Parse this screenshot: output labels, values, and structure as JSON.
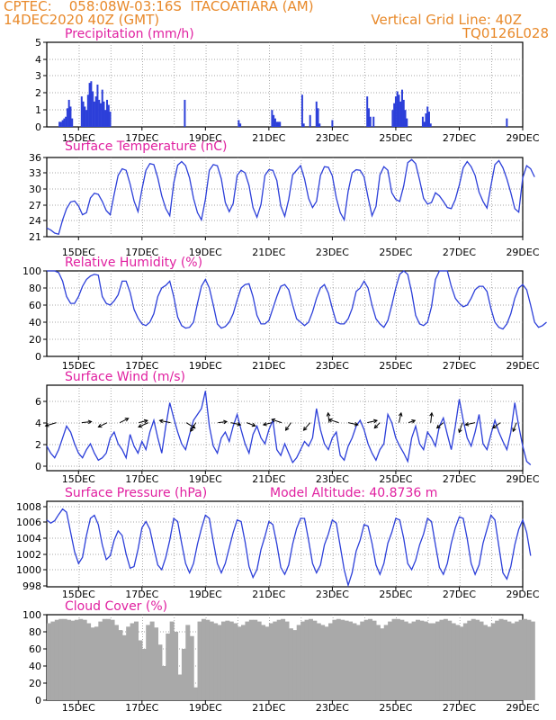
{
  "header": {
    "line1_left": "CPTEC:    058:08W-03:16S  ITACOATIARA (AM)",
    "line2_left": "14DEC2020 40Z (GMT)",
    "line1_right": "Vertical Grid Line: 40Z",
    "line2_right": "TQ0126L028"
  },
  "colors": {
    "header": "#e8892a",
    "title": "#e020a0",
    "series": "#2c3fd9",
    "cloud_fill": "#a9a9a9",
    "arrow": "#000000"
  },
  "x_tick_labels": [
    "15DEC",
    "17DEC",
    "19DEC",
    "21DEC",
    "23DEC",
    "25DEC",
    "27DEC",
    "29DEC"
  ],
  "model_altitude": "Model Altitude: 40.8736 m",
  "chart_data": [
    {
      "type": "bar",
      "title": "Precipitation (mm/h)",
      "ylim": [
        0,
        5
      ],
      "yticks": [
        "0",
        "1",
        "2",
        "3",
        "4",
        "5"
      ],
      "x_range_days": [
        14.0,
        29.0
      ],
      "x": [
        14.4,
        14.45,
        14.5,
        14.55,
        14.6,
        14.65,
        14.7,
        14.75,
        14.8,
        15.1,
        15.15,
        15.2,
        15.25,
        15.3,
        15.35,
        15.4,
        15.45,
        15.5,
        15.55,
        15.6,
        15.65,
        15.7,
        15.75,
        15.8,
        15.85,
        15.9,
        15.95,
        16.0,
        18.35,
        20.05,
        20.1,
        21.1,
        21.15,
        21.2,
        21.25,
        21.3,
        21.35,
        22.05,
        22.1,
        22.3,
        22.5,
        22.55,
        22.6,
        23.0,
        24.1,
        24.15,
        24.2,
        24.3,
        24.9,
        24.95,
        25.0,
        25.05,
        25.1,
        25.15,
        25.2,
        25.25,
        25.3,
        25.35,
        25.85,
        25.9,
        25.95,
        26.0,
        26.05,
        26.1,
        28.5
      ],
      "values": [
        0.3,
        0.3,
        0.4,
        0.5,
        0.6,
        1.1,
        1.6,
        1.2,
        0.5,
        1.8,
        1.5,
        1.2,
        1.0,
        1.9,
        2.6,
        2.7,
        2.1,
        1.5,
        1.8,
        2.5,
        1.6,
        1.4,
        2.2,
        1.5,
        1.0,
        1.6,
        1.3,
        0.9,
        1.6,
        0.4,
        0.2,
        1.0,
        0.7,
        0.5,
        0.3,
        0.3,
        0.3,
        1.9,
        0.2,
        0.7,
        1.5,
        1.1,
        0.2,
        0.4,
        1.8,
        1.1,
        0.6,
        0.6,
        1.0,
        1.4,
        1.8,
        2.1,
        1.9,
        1.5,
        2.2,
        1.6,
        1.0,
        0.5,
        0.6,
        0.3,
        0.8,
        1.2,
        0.9,
        0.2,
        0.5
      ]
    },
    {
      "type": "line",
      "title": "Surface Temperature (nC)",
      "ylim": [
        20.5,
        36
      ],
      "yticks": [
        "21",
        "24",
        "27",
        "30",
        "33",
        "36"
      ],
      "x_start_day": 14.0,
      "x_step_days": 0.125,
      "values": [
        22.2,
        21.8,
        21.2,
        21.0,
        23.8,
        26.0,
        27.3,
        27.5,
        26.5,
        24.8,
        25.2,
        28.1,
        29.0,
        28.8,
        27.4,
        25.6,
        24.8,
        28.8,
        32.5,
        33.8,
        33.5,
        30.8,
        27.5,
        25.4,
        29.8,
        33.5,
        34.8,
        34.6,
        32.0,
        28.5,
        26.0,
        24.6,
        31.0,
        34.5,
        35.2,
        34.4,
        32.0,
        28.0,
        25.2,
        23.8,
        27.8,
        33.5,
        34.6,
        34.4,
        31.8,
        27.2,
        25.4,
        27.0,
        32.5,
        33.5,
        33.0,
        30.5,
        26.2,
        24.3,
        26.8,
        32.5,
        33.6,
        33.5,
        31.5,
        26.5,
        24.5,
        27.8,
        32.6,
        33.5,
        34.4,
        31.8,
        28.0,
        26.2,
        27.4,
        32.5,
        34.2,
        34.1,
        32.4,
        28.1,
        25.2,
        23.8,
        29.4,
        33.0,
        33.6,
        33.5,
        32.2,
        28.2,
        24.6,
        26.4,
        32.6,
        34.2,
        33.5,
        29.1,
        27.8,
        27.4,
        30.5,
        35.0,
        35.6,
        34.8,
        31.6,
        28.0,
        26.9,
        27.2,
        29.1,
        28.5,
        27.4,
        26.2,
        26.0,
        27.8,
        30.6,
        34.0,
        35.2,
        34.2,
        32.5,
        29.2,
        27.4,
        26.1,
        30.5,
        34.6,
        35.4,
        34.0,
        31.8,
        29.1,
        26.0,
        25.3,
        32.0,
        34.4,
        33.8,
        32.2
      ]
    },
    {
      "type": "line",
      "title": "Relative Humidity (%)",
      "ylim": [
        0,
        100
      ],
      "yticks": [
        "0",
        "20",
        "40",
        "60",
        "80",
        "100"
      ],
      "x_start_day": 14.0,
      "x_step_days": 0.125,
      "values": [
        100,
        100,
        100,
        98,
        88,
        70,
        62,
        62,
        70,
        82,
        90,
        94,
        96,
        95,
        70,
        62,
        60,
        65,
        72,
        88,
        88,
        75,
        55,
        45,
        38,
        36,
        40,
        50,
        70,
        80,
        83,
        88,
        70,
        46,
        36,
        33,
        34,
        40,
        62,
        82,
        90,
        80,
        60,
        38,
        33,
        35,
        40,
        50,
        66,
        80,
        84,
        85,
        70,
        48,
        38,
        38,
        42,
        56,
        70,
        82,
        84,
        78,
        60,
        44,
        40,
        36,
        40,
        52,
        68,
        80,
        84,
        74,
        56,
        40,
        38,
        38,
        44,
        56,
        76,
        80,
        88,
        80,
        60,
        44,
        38,
        34,
        42,
        60,
        80,
        96,
        100,
        96,
        75,
        48,
        38,
        36,
        40,
        58,
        90,
        100,
        100,
        100,
        82,
        68,
        62,
        58,
        60,
        68,
        78,
        82,
        82,
        76,
        56,
        40,
        34,
        32,
        38,
        50,
        68,
        80,
        84,
        78,
        60,
        40,
        34,
        36,
        40
      ]
    },
    {
      "type": "line",
      "title": "Surface Wind (m/s)",
      "ylim": [
        -0.3,
        7
      ],
      "yticks": [
        "0",
        "2",
        "4",
        "6"
      ],
      "x_start_day": 14.0,
      "x_step_days": 0.125,
      "values": [
        1.8,
        1.2,
        0.8,
        1.5,
        2.5,
        3.5,
        3.0,
        2.0,
        1.2,
        0.8,
        1.5,
        2.0,
        1.2,
        0.6,
        0.8,
        1.2,
        2.5,
        3.0,
        2.0,
        1.5,
        0.8,
        2.8,
        1.8,
        1.2,
        2.2,
        1.5,
        3.0,
        4.0,
        2.5,
        1.2,
        3.5,
        5.5,
        4.2,
        3.0,
        2.0,
        1.5,
        2.8,
        4.0,
        4.5,
        5.0,
        6.5,
        3.5,
        1.8,
        1.2,
        2.5,
        3.0,
        2.2,
        3.5,
        4.5,
        3.2,
        2.0,
        1.2,
        2.8,
        3.5,
        2.5,
        2.0,
        3.2,
        4.0,
        1.5,
        1.0,
        2.0,
        1.2,
        0.4,
        0.8,
        1.5,
        2.2,
        1.8,
        2.5,
        5.0,
        3.2,
        2.0,
        1.5,
        2.5,
        3.0,
        1.0,
        0.6,
        1.8,
        2.5,
        3.5,
        4.0,
        3.2,
        2.0,
        1.2,
        0.6,
        1.5,
        2.0,
        4.5,
        3.8,
        2.5,
        1.8,
        1.2,
        0.5,
        2.5,
        3.5,
        2.0,
        1.5,
        3.0,
        2.5,
        1.8,
        3.5,
        4.2,
        2.8,
        1.5,
        3.5,
        5.8,
        4.0,
        2.5,
        1.8,
        3.0,
        4.5,
        2.0,
        1.5,
        2.8,
        4.0,
        3.0,
        2.2,
        1.5,
        3.0,
        5.5,
        3.5,
        1.8,
        0.5,
        0.2
      ],
      "arrows": {
        "x_days": [
          14.3,
          15.1,
          15.9,
          16.3,
          16.9,
          17.2,
          17.9,
          18.4,
          18.7,
          19.4,
          19.8,
          20.3,
          21.1,
          21.4,
          21.7,
          22.3,
          22.9,
          23.2,
          23.5,
          24.1,
          24.5,
          25.1,
          25.4,
          26.1,
          26.5,
          27.1,
          27.5,
          28.3,
          28.8
        ],
        "u": [
          -1.0,
          0.9,
          -0.8,
          0.8,
          0.8,
          -0.9,
          -1.0,
          0.8,
          -0.5,
          0.8,
          0.9,
          0.8,
          -0.8,
          -0.9,
          -0.5,
          -0.6,
          -0.1,
          -0.9,
          0.9,
          0.9,
          -0.5,
          0.2,
          0.6,
          0.1,
          -0.6,
          -0.3,
          -0.9,
          -0.7,
          -0.3
        ],
        "v": [
          -0.3,
          0.1,
          -0.4,
          0.4,
          0.2,
          -0.4,
          0.2,
          -0.5,
          -0.8,
          0.1,
          -0.2,
          -0.3,
          -0.2,
          0.3,
          -0.7,
          -0.7,
          0.9,
          0.3,
          -0.2,
          0.2,
          -0.5,
          0.9,
          0.2,
          0.9,
          -0.5,
          -0.9,
          -0.2,
          -0.5,
          -0.8
        ]
      }
    },
    {
      "type": "line",
      "title": "Surface Pressure (hPa)",
      "ylim": [
        998,
        1009
      ],
      "yticks": [
        "998",
        "1000",
        "1002",
        "1004",
        "1006",
        "1008"
      ],
      "x_start_day": 14.0,
      "x_step_days": 0.125,
      "values": [
        1006.6,
        1006.2,
        1006.5,
        1007.3,
        1008.0,
        1007.6,
        1005.0,
        1002.5,
        1001.0,
        1001.8,
        1004.6,
        1006.8,
        1007.2,
        1006.0,
        1003.4,
        1001.5,
        1002.0,
        1004.0,
        1005.2,
        1004.6,
        1002.2,
        1000.4,
        1000.6,
        1002.8,
        1005.6,
        1006.4,
        1005.4,
        1003.0,
        1000.8,
        1000.2,
        1001.8,
        1004.0,
        1006.8,
        1006.4,
        1003.6,
        1001.0,
        999.8,
        1001.0,
        1003.5,
        1005.5,
        1007.2,
        1006.8,
        1003.8,
        1001.0,
        999.8,
        1001.0,
        1003.0,
        1005.0,
        1006.6,
        1006.4,
        1003.8,
        1000.6,
        999.2,
        1000.2,
        1002.8,
        1004.5,
        1006.4,
        1006.0,
        1003.5,
        1000.5,
        999.6,
        1000.8,
        1003.5,
        1005.5,
        1006.8,
        1006.8,
        1004.0,
        1001.0,
        999.8,
        1000.8,
        1003.4,
        1004.8,
        1006.6,
        1006.2,
        1003.2,
        1000.2,
        998.2,
        999.8,
        1002.6,
        1004.0,
        1006.0,
        1005.8,
        1003.6,
        1000.8,
        999.6,
        1001.0,
        1003.6,
        1005.0,
        1006.8,
        1006.6,
        1004.2,
        1001.0,
        1000.2,
        1001.4,
        1003.4,
        1004.8,
        1006.8,
        1006.4,
        1003.4,
        1000.5,
        999.6,
        1001.0,
        1003.6,
        1005.6,
        1007.0,
        1006.8,
        1004.2,
        1001.0,
        999.6,
        1000.8,
        1003.6,
        1005.4,
        1007.2,
        1006.6,
        1003.2,
        999.8,
        999.0,
        1000.6,
        1003.4,
        1005.4,
        1006.6,
        1005.0,
        1002.0
      ]
    },
    {
      "type": "bar",
      "title": "Cloud Cover (%)",
      "ylim": [
        0,
        100
      ],
      "yticks": [
        "0",
        "20",
        "40",
        "60",
        "80",
        "100"
      ],
      "x_start_day": 14.0,
      "x_step_days": 0.125,
      "values": [
        90,
        92,
        94,
        95,
        95,
        94,
        93,
        94,
        95,
        94,
        90,
        85,
        86,
        92,
        95,
        95,
        94,
        88,
        82,
        76,
        86,
        90,
        92,
        70,
        60,
        88,
        92,
        85,
        65,
        40,
        78,
        92,
        80,
        30,
        60,
        88,
        75,
        15,
        92,
        95,
        94,
        92,
        90,
        88,
        92,
        93,
        92,
        90,
        86,
        88,
        92,
        94,
        94,
        92,
        88,
        86,
        90,
        92,
        94,
        95,
        92,
        84,
        82,
        88,
        92,
        94,
        95,
        93,
        90,
        88,
        86,
        90,
        94,
        95,
        94,
        93,
        92,
        90,
        88,
        92,
        94,
        95,
        93,
        88,
        84,
        88,
        92,
        95,
        95,
        94,
        92,
        90,
        92,
        94,
        93,
        92,
        90,
        90,
        92,
        94,
        95,
        93,
        90,
        88,
        86,
        90,
        93,
        95,
        94,
        92,
        88,
        86,
        90,
        93,
        95,
        94,
        92,
        90,
        92,
        94,
        95,
        94,
        92
      ]
    }
  ]
}
